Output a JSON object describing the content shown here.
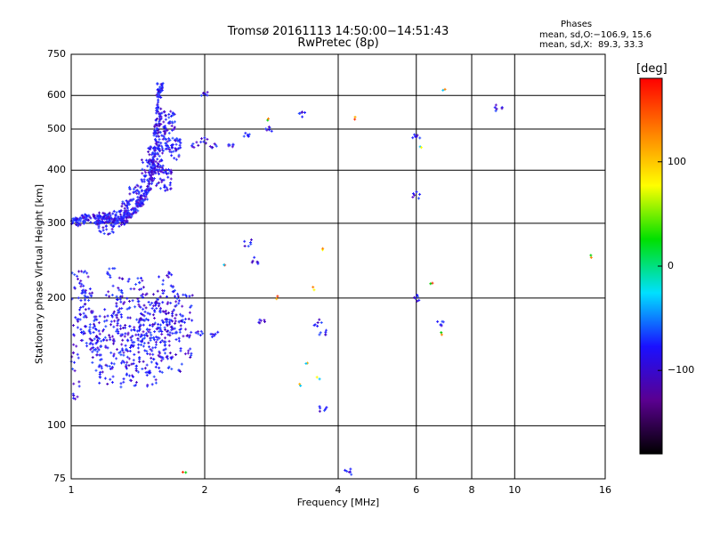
{
  "chart_data": {
    "type": "scatter",
    "title": "Tromsø 20161113 14:50:00−14:51:43",
    "subtitle": "RwPretec (8p)",
    "xlabel": "Frequency [MHz]",
    "ylabel": "Stationary phase Virtual Height [km]",
    "x_scale": "log",
    "y_scale": "log",
    "xlim": [
      1,
      16
    ],
    "ylim": [
      75,
      750
    ],
    "x_ticks": [
      "1",
      "2",
      "4",
      "6",
      "8",
      "10",
      "16"
    ],
    "y_ticks": [
      "75",
      "100",
      "200",
      "300",
      "400",
      "500",
      "600",
      "750"
    ],
    "grid": true,
    "phase_summary": {
      "heading": "Phases",
      "line1": "mean, sd,O:−106.9, 15.6",
      "line2": "mean, sd,X:  89.3, 33.3"
    },
    "colorbar": {
      "unit": "[deg]",
      "ticks": [
        "100",
        "0",
        "−100"
      ],
      "tick_values": [
        100,
        0,
        -100
      ],
      "range": [
        -180,
        180
      ],
      "colormap": [
        "#000000",
        "#5a0090",
        "#1a10ff",
        "#00e0ff",
        "#00e000",
        "#ffff00",
        "#ff8000",
        "#ff0000"
      ]
    },
    "traces": {
      "f_layer_o": [
        [
          1.0,
          300
        ],
        [
          1.05,
          305
        ],
        [
          1.1,
          310
        ],
        [
          1.15,
          305
        ],
        [
          1.2,
          310
        ],
        [
          1.25,
          300
        ],
        [
          1.3,
          305
        ],
        [
          1.35,
          315
        ],
        [
          1.4,
          325
        ],
        [
          1.45,
          340
        ],
        [
          1.5,
          365
        ],
        [
          1.53,
          400
        ],
        [
          1.55,
          450
        ],
        [
          1.57,
          520
        ],
        [
          1.58,
          600
        ],
        [
          1.59,
          640
        ]
      ],
      "f_layer_spread_x": [
        [
          1.2,
          300
        ],
        [
          1.3,
          320
        ],
        [
          1.4,
          350
        ],
        [
          1.5,
          400
        ],
        [
          1.55,
          430
        ],
        [
          1.6,
          470
        ],
        [
          1.65,
          520
        ],
        [
          1.7,
          450
        ],
        [
          1.62,
          380
        ]
      ],
      "e_layer_cloud": [
        [
          1.0,
          140
        ],
        [
          1.05,
          200
        ],
        [
          1.1,
          180
        ],
        [
          1.15,
          160
        ],
        [
          1.2,
          150
        ],
        [
          1.25,
          200
        ],
        [
          1.3,
          170
        ],
        [
          1.35,
          145
        ],
        [
          1.4,
          190
        ],
        [
          1.45,
          160
        ],
        [
          1.5,
          180
        ],
        [
          1.55,
          150
        ],
        [
          1.6,
          170
        ],
        [
          1.65,
          200
        ],
        [
          1.7,
          160
        ],
        [
          1.8,
          175
        ]
      ],
      "scattered_o": [
        [
          1.9,
          460
        ],
        [
          2.0,
          470
        ],
        [
          2.1,
          460
        ],
        [
          2.3,
          460
        ],
        [
          2.5,
          480
        ],
        [
          2.8,
          500
        ],
        [
          2.5,
          270
        ],
        [
          2.6,
          245
        ],
        [
          1.95,
          165
        ],
        [
          2.1,
          165
        ],
        [
          2.7,
          175
        ],
        [
          3.6,
          175
        ],
        [
          3.7,
          165
        ],
        [
          6.0,
          480
        ],
        [
          6.0,
          350
        ],
        [
          6.0,
          200
        ],
        [
          6.8,
          175
        ],
        [
          9.2,
          560
        ],
        [
          2.0,
          600
        ],
        [
          3.3,
          540
        ],
        [
          3.7,
          110
        ],
        [
          1.0,
          93
        ],
        [
          4.2,
          78
        ]
      ],
      "scattered_x": [
        [
          2.8,
          530
        ],
        [
          4.4,
          530
        ],
        [
          6.1,
          450
        ],
        [
          6.9,
          620
        ],
        [
          6.8,
          165
        ],
        [
          3.7,
          260
        ],
        [
          3.5,
          210
        ],
        [
          3.4,
          140
        ],
        [
          3.6,
          130
        ],
        [
          2.9,
          200
        ],
        [
          15.0,
          250
        ],
        [
          1.8,
          78
        ],
        [
          2.2,
          240
        ],
        [
          3.3,
          125
        ],
        [
          6.5,
          215
        ]
      ]
    }
  }
}
